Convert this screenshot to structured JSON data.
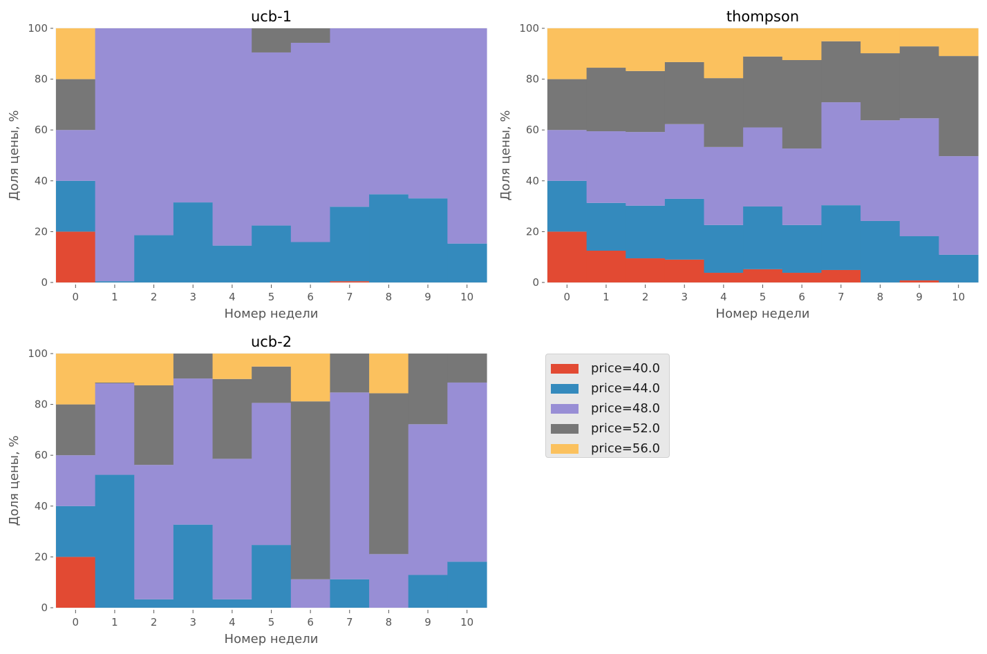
{
  "chart_data": [
    {
      "type": "bar",
      "stacked": true,
      "title": "ucb-1",
      "xlabel": "Номер недели",
      "ylabel": "Доля цены, %",
      "categories": [
        "0",
        "1",
        "2",
        "3",
        "4",
        "5",
        "6",
        "7",
        "8",
        "9",
        "10"
      ],
      "yticks": [
        "0",
        "20",
        "40",
        "60",
        "80",
        "100"
      ],
      "ylim": [
        0,
        100
      ],
      "grid": false,
      "series": [
        {
          "name": "price=40.0",
          "values": [
            20,
            0,
            0,
            0,
            0,
            0,
            0,
            0.5,
            0,
            0,
            0
          ]
        },
        {
          "name": "price=44.0",
          "values": [
            20,
            0.5,
            18.6,
            31.5,
            14.5,
            22.4,
            15.9,
            29.3,
            34.7,
            33.1,
            15.3
          ]
        },
        {
          "name": "price=48.0",
          "values": [
            20,
            99.5,
            81.4,
            68.5,
            85.5,
            68.1,
            78.4,
            70.2,
            65.3,
            66.9,
            84.7
          ]
        },
        {
          "name": "price=52.0",
          "values": [
            20,
            0,
            0,
            0,
            0,
            9.5,
            5.7,
            0,
            0,
            0,
            0
          ]
        },
        {
          "name": "price=56.0",
          "values": [
            20,
            0,
            0,
            0,
            0,
            0,
            0,
            0,
            0,
            0,
            0
          ]
        }
      ]
    },
    {
      "type": "bar",
      "stacked": true,
      "title": "thompson",
      "xlabel": "Номер недели",
      "ylabel": "Доля цены, %",
      "categories": [
        "0",
        "1",
        "2",
        "3",
        "4",
        "5",
        "6",
        "7",
        "8",
        "9",
        "10"
      ],
      "yticks": [
        "0",
        "20",
        "40",
        "60",
        "80",
        "100"
      ],
      "ylim": [
        0,
        100
      ],
      "grid": false,
      "series": [
        {
          "name": "price=40.0",
          "values": [
            20,
            12.5,
            9.5,
            9.0,
            3.8,
            5.2,
            3.8,
            4.9,
            0,
            0.8,
            0
          ]
        },
        {
          "name": "price=44.0",
          "values": [
            20,
            18.8,
            20.7,
            23.9,
            18.8,
            24.7,
            18.8,
            25.5,
            24.2,
            17.4,
            10.9
          ]
        },
        {
          "name": "price=48.0",
          "values": [
            20,
            28.2,
            29.0,
            29.4,
            30.7,
            31.1,
            30.1,
            40.5,
            39.6,
            46.4,
            38.8
          ]
        },
        {
          "name": "price=52.0",
          "values": [
            20,
            25.0,
            24.0,
            24.4,
            27.1,
            27.9,
            34.8,
            24.0,
            26.4,
            28.3,
            39.4
          ]
        },
        {
          "name": "price=56.0",
          "values": [
            20,
            15.5,
            16.8,
            13.3,
            19.6,
            11.1,
            12.5,
            5.1,
            9.8,
            7.1,
            10.9
          ]
        }
      ]
    },
    {
      "type": "bar",
      "stacked": true,
      "title": "ucb-2",
      "xlabel": "Номер недели",
      "ylabel": "Доля цены, %",
      "categories": [
        "0",
        "1",
        "2",
        "3",
        "4",
        "5",
        "6",
        "7",
        "8",
        "9",
        "10"
      ],
      "yticks": [
        "0",
        "20",
        "40",
        "60",
        "80",
        "100"
      ],
      "ylim": [
        0,
        100
      ],
      "grid": false,
      "series": [
        {
          "name": "price=40.0",
          "values": [
            20,
            0,
            0,
            0,
            0,
            0,
            0,
            0,
            0,
            0,
            0
          ]
        },
        {
          "name": "price=44.0",
          "values": [
            20,
            52.3,
            3.3,
            32.7,
            3.3,
            24.7,
            0,
            11.2,
            0,
            12.9,
            18.1
          ]
        },
        {
          "name": "price=48.0",
          "values": [
            20,
            36.0,
            52.9,
            57.5,
            55.3,
            55.9,
            11.2,
            73.5,
            21.1,
            59.3,
            70.5
          ]
        },
        {
          "name": "price=52.0",
          "values": [
            20,
            0.3,
            31.3,
            9.8,
            31.4,
            14.3,
            70.0,
            15.3,
            63.3,
            27.8,
            11.4
          ]
        },
        {
          "name": "price=56.0",
          "values": [
            20,
            11.4,
            12.5,
            0,
            10.0,
            5.1,
            18.8,
            0,
            15.6,
            0,
            0
          ]
        }
      ]
    }
  ],
  "legend": {
    "placement": "right of ucb-2, top-left of empty panel",
    "items": [
      {
        "label": "price=40.0",
        "color": "#E24A33"
      },
      {
        "label": "price=44.0",
        "color": "#348ABD"
      },
      {
        "label": "price=48.0",
        "color": "#988ED5"
      },
      {
        "label": "price=52.0",
        "color": "#777777"
      },
      {
        "label": "price=56.0",
        "color": "#FBC15E"
      }
    ]
  }
}
